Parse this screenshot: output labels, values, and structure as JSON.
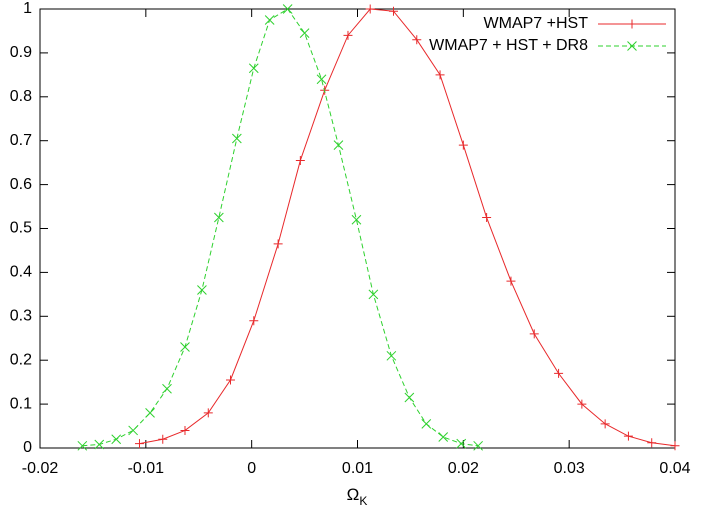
{
  "chart_data": {
    "type": "line",
    "xlabel_symbol": "Ω",
    "xlabel_subscript": "K",
    "xlim": [
      -0.02,
      0.04
    ],
    "xticks": [
      -0.02,
      -0.01,
      0,
      0.01,
      0.02,
      0.03,
      0.04
    ],
    "ylim": [
      0,
      1
    ],
    "yticks": [
      0,
      0.1,
      0.2,
      0.3,
      0.4,
      0.5,
      0.6,
      0.7,
      0.8,
      0.9,
      1
    ],
    "grid": false,
    "legend": "upper right",
    "series": [
      {
        "name": "WMAP7 +HST",
        "color": "#e8292b",
        "marker": "plus",
        "dash": "solid",
        "x": [
          -0.0106,
          -0.0084,
          -0.0063,
          -0.0041,
          -0.002,
          0.0002,
          0.0025,
          0.0046,
          0.0069,
          0.0091,
          0.0112,
          0.0134,
          0.0156,
          0.0178,
          0.02,
          0.0222,
          0.0245,
          0.0267,
          0.029,
          0.0312,
          0.0334,
          0.0356,
          0.0378,
          0.04
        ],
        "values": [
          0.01,
          0.02,
          0.04,
          0.08,
          0.155,
          0.29,
          0.465,
          0.655,
          0.815,
          0.94,
          1.0,
          0.995,
          0.93,
          0.85,
          0.69,
          0.525,
          0.38,
          0.26,
          0.17,
          0.1,
          0.055,
          0.027,
          0.012,
          0.005
        ]
      },
      {
        "name": "WMAP7 + HST + DR8",
        "color": "#2ed12e",
        "marker": "cross",
        "dash": "dashed",
        "x": [
          -0.016,
          -0.0144,
          -0.0128,
          -0.0112,
          -0.0096,
          -0.008,
          -0.0063,
          -0.0047,
          -0.0031,
          -0.0014,
          0.0002,
          0.0017,
          0.0034,
          0.005,
          0.0066,
          0.0082,
          0.0099,
          0.0115,
          0.0132,
          0.0149,
          0.0165,
          0.0181,
          0.0198,
          0.0214
        ],
        "values": [
          0.005,
          0.008,
          0.02,
          0.04,
          0.08,
          0.135,
          0.23,
          0.36,
          0.525,
          0.705,
          0.865,
          0.975,
          1.0,
          0.945,
          0.84,
          0.69,
          0.52,
          0.35,
          0.21,
          0.115,
          0.055,
          0.025,
          0.01,
          0.005
        ]
      }
    ]
  }
}
